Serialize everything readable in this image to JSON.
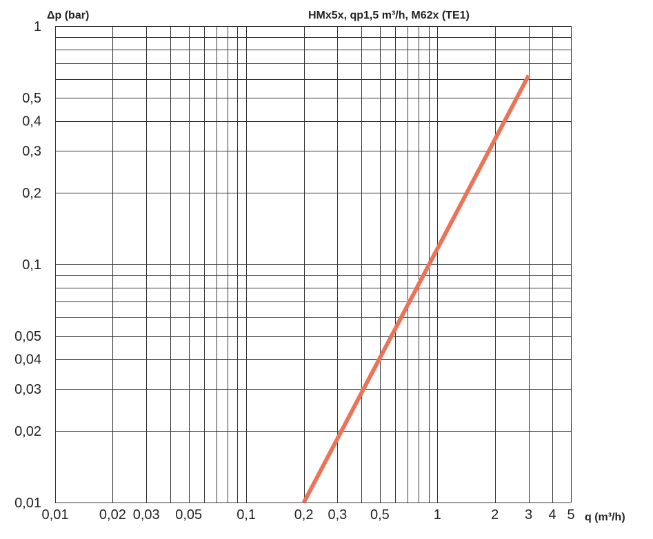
{
  "chart_data": {
    "type": "line",
    "title": "HMx5x, qp1,5 m³/h, M62x (TE1)",
    "xlabel": "q (m³/h)",
    "ylabel": "Δp (bar)",
    "x_scale": "log",
    "y_scale": "log",
    "xlim": [
      0.01,
      5
    ],
    "ylim": [
      0.01,
      1
    ],
    "grid": true,
    "x_ticks": [
      {
        "value": 0.01,
        "label": "0,01"
      },
      {
        "value": 0.02,
        "label": "0,02"
      },
      {
        "value": 0.03,
        "label": "0,03"
      },
      {
        "value": 0.05,
        "label": "0,05"
      },
      {
        "value": 0.1,
        "label": "0,1"
      },
      {
        "value": 0.2,
        "label": "0,2"
      },
      {
        "value": 0.3,
        "label": "0,3"
      },
      {
        "value": 0.5,
        "label": "0,5"
      },
      {
        "value": 1,
        "label": "1"
      },
      {
        "value": 2,
        "label": "2"
      },
      {
        "value": 3,
        "label": "3"
      },
      {
        "value": 4,
        "label": "4"
      },
      {
        "value": 5,
        "label": "5"
      }
    ],
    "y_ticks": [
      {
        "value": 0.01,
        "label": "0,01"
      },
      {
        "value": 0.02,
        "label": "0,02"
      },
      {
        "value": 0.03,
        "label": "0,03"
      },
      {
        "value": 0.04,
        "label": "0,04"
      },
      {
        "value": 0.05,
        "label": "0,05"
      },
      {
        "value": 0.1,
        "label": "0,1"
      },
      {
        "value": 0.2,
        "label": "0,2"
      },
      {
        "value": 0.3,
        "label": "0,3"
      },
      {
        "value": 0.4,
        "label": "0,4"
      },
      {
        "value": 0.5,
        "label": "0,5"
      },
      {
        "value": 1,
        "label": "1"
      }
    ],
    "x_gridlines": [
      0.01,
      0.02,
      0.03,
      0.04,
      0.05,
      0.06,
      0.07,
      0.08,
      0.09,
      0.1,
      0.2,
      0.3,
      0.4,
      0.5,
      0.6,
      0.7,
      0.8,
      0.9,
      1,
      2,
      3,
      4,
      5
    ],
    "y_gridlines": [
      0.01,
      0.02,
      0.03,
      0.04,
      0.05,
      0.06,
      0.07,
      0.08,
      0.09,
      0.1,
      0.2,
      0.3,
      0.4,
      0.5,
      0.6,
      0.7,
      0.8,
      0.9,
      1
    ],
    "series": [
      {
        "color": "#ee7356",
        "points": [
          {
            "x": 0.2,
            "y": 0.01
          },
          {
            "x": 3,
            "y": 0.62
          }
        ]
      }
    ]
  }
}
